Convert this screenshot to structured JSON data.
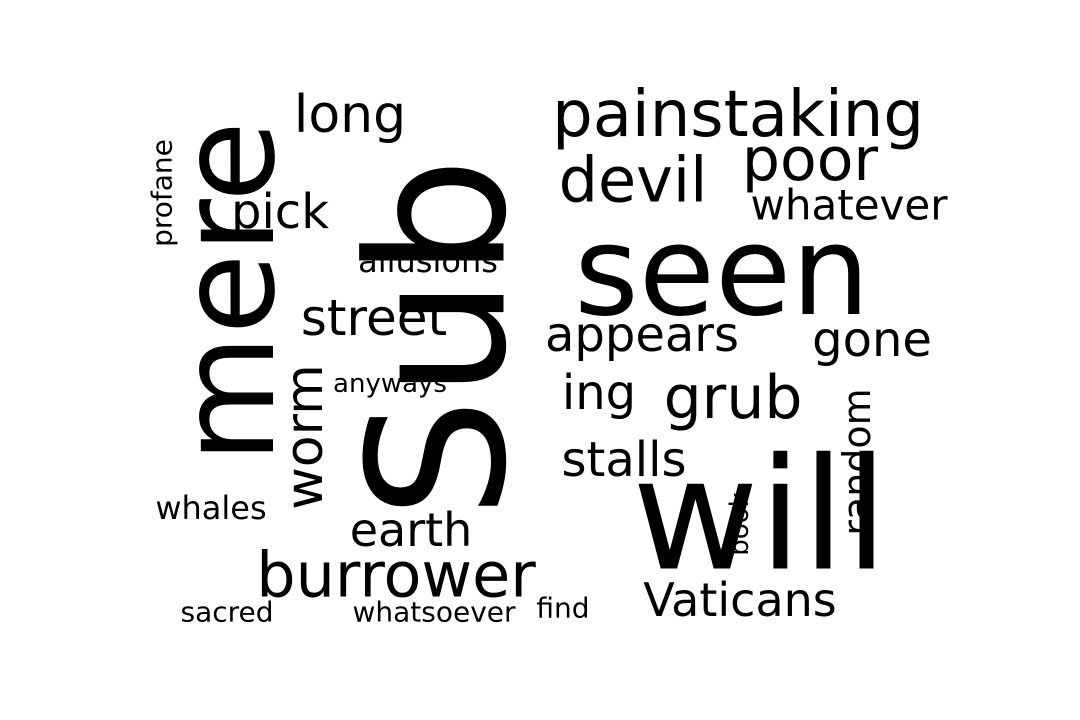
{
  "words": [
    {
      "text": "Sub",
      "name": "word-sub"
    },
    {
      "text": "mere",
      "name": "word-mere"
    },
    {
      "text": "seen",
      "name": "word-seen"
    },
    {
      "text": "will",
      "name": "word-will"
    },
    {
      "text": "painstaking",
      "name": "word-painstaking"
    },
    {
      "text": "devil",
      "name": "word-devil"
    },
    {
      "text": "poor",
      "name": "word-poor"
    },
    {
      "text": "burrower",
      "name": "word-burrower"
    },
    {
      "text": "grub",
      "name": "word-grub"
    },
    {
      "text": "long",
      "name": "word-long"
    },
    {
      "text": "street",
      "name": "word-street"
    },
    {
      "text": "appears",
      "name": "word-appears"
    },
    {
      "text": "pick",
      "name": "word-pick"
    },
    {
      "text": "worm",
      "name": "word-worm"
    },
    {
      "text": "gone",
      "name": "word-gone"
    },
    {
      "text": "stalls",
      "name": "word-stalls"
    },
    {
      "text": "earth",
      "name": "word-earth"
    },
    {
      "text": "Vaticans",
      "name": "word-vaticans"
    },
    {
      "text": "whatever",
      "name": "word-whatever"
    },
    {
      "text": "ing",
      "name": "word-ing"
    },
    {
      "text": "random",
      "name": "word-random"
    },
    {
      "text": "allusions",
      "name": "word-allusions"
    },
    {
      "text": "whales",
      "name": "word-whales"
    },
    {
      "text": "profane",
      "name": "word-profane"
    },
    {
      "text": "sacred",
      "name": "word-sacred"
    },
    {
      "text": "whatsoever",
      "name": "word-whatsoever"
    },
    {
      "text": "find",
      "name": "word-find"
    },
    {
      "text": "anyways",
      "name": "word-anyways"
    },
    {
      "text": "book",
      "name": "word-book"
    }
  ]
}
